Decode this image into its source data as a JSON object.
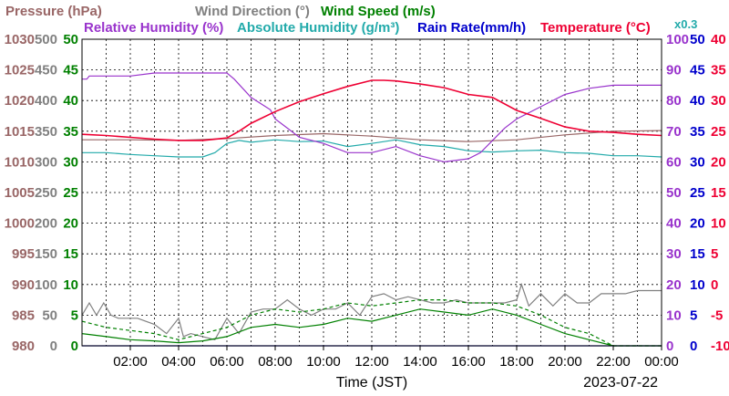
{
  "chart_data": {
    "type": "line",
    "date_label": "2023-07-22",
    "xlabel": "Time (JST)",
    "x_ticks": [
      "02:00",
      "04:00",
      "06:00",
      "08:00",
      "10:00",
      "12:00",
      "14:00",
      "16:00",
      "18:00",
      "20:00",
      "22:00",
      "00:00"
    ],
    "x_range_hours": [
      0,
      24
    ],
    "legend_row1": [
      {
        "name": "Pressure (hPa)",
        "color": "#996666"
      },
      {
        "name": "Wind Direction (°)",
        "color": "#808080"
      },
      {
        "name": "Wind Speed (m/s)",
        "color": "#008000"
      }
    ],
    "legend_row2": [
      {
        "name": "Relative Humidity (%)",
        "color": "#9933cc"
      },
      {
        "name": "Absolute Humidity (g/m³)",
        "color": "#22aaaa"
      },
      {
        "name": "Rain Rate(mm/h)",
        "color": "#0000cc"
      },
      {
        "name": "Temperature (°C)",
        "color": "#ee0033"
      }
    ],
    "rain_multiplier_label": "x0.3",
    "axes": {
      "pressure": {
        "color": "#996666",
        "range": [
          980,
          1030
        ],
        "ticks": [
          "980",
          "985",
          "990",
          "995",
          "1000",
          "1005",
          "1010",
          "1015",
          "1020",
          "1025",
          "1030"
        ]
      },
      "wind_direction": {
        "color": "#808080",
        "range": [
          0,
          500
        ],
        "ticks": [
          "0",
          "50",
          "100",
          "150",
          "200",
          "250",
          "300",
          "350",
          "400",
          "450",
          "500"
        ]
      },
      "wind_speed": {
        "color": "#008000",
        "range": [
          0,
          50
        ],
        "ticks": [
          "0",
          "5",
          "10",
          "15",
          "20",
          "25",
          "30",
          "35",
          "40",
          "45",
          "50"
        ]
      },
      "humidity": {
        "color": "#9933cc",
        "range": [
          0,
          100
        ],
        "ticks": [
          "0",
          "10",
          "20",
          "30",
          "40",
          "50",
          "60",
          "70",
          "80",
          "90",
          "100"
        ]
      },
      "rain": {
        "color": "#0000cc",
        "range": [
          0,
          50
        ],
        "ticks": [
          "0",
          "5",
          "10",
          "15",
          "20",
          "25",
          "30",
          "35",
          "40",
          "45",
          "50"
        ]
      },
      "temperature": {
        "color": "#ee0033",
        "range": [
          -10,
          40
        ],
        "ticks": [
          "-10",
          "-5",
          "0",
          "5",
          "10",
          "15",
          "20",
          "25",
          "30",
          "35",
          "40"
        ]
      }
    },
    "series": [
      {
        "name": "Temperature",
        "axis": "temperature",
        "color": "#ee0033",
        "x": [
          0,
          1,
          2,
          3,
          4,
          5,
          6,
          6.5,
          7,
          8,
          9,
          10,
          11,
          12,
          12.5,
          13,
          14,
          15,
          16,
          17,
          18,
          19,
          20,
          21,
          22,
          23,
          24
        ],
        "y": [
          24.5,
          24.3,
          24,
          23.7,
          23.5,
          23.5,
          23.9,
          25,
          26.3,
          28.2,
          29.8,
          31.1,
          32.3,
          33.3,
          33.3,
          33.2,
          32.7,
          32.1,
          31,
          30.5,
          28.4,
          27.1,
          25.7,
          25,
          24.8,
          24.5,
          24.3
        ]
      },
      {
        "name": "Relative Humidity",
        "axis": "humidity",
        "color": "#9933cc",
        "x": [
          0,
          0.2,
          0.3,
          2,
          3,
          4,
          5,
          6,
          6.3,
          7,
          7.8,
          8,
          8.5,
          9,
          10,
          11,
          12,
          13,
          14,
          15,
          16,
          16.5,
          17,
          17.5,
          18,
          19,
          20,
          21,
          22,
          23,
          23.5,
          24
        ],
        "y": [
          87,
          87,
          88,
          88,
          89,
          89,
          89,
          89,
          87,
          81,
          77,
          74,
          71,
          68,
          66,
          63,
          63,
          65,
          62,
          60,
          61,
          63,
          67,
          71,
          74,
          78,
          82,
          84,
          85,
          85,
          85,
          85
        ]
      },
      {
        "name": "Absolute Humidity",
        "axis": "wind_speed",
        "color": "#22aaaa",
        "x": [
          0,
          1,
          2,
          3,
          4,
          5,
          5.5,
          6,
          6.5,
          7,
          8,
          9,
          10,
          11,
          12,
          13,
          14,
          15,
          16,
          17,
          18,
          19,
          20,
          21,
          22,
          23,
          24
        ],
        "y": [
          31.5,
          31.5,
          31.2,
          31,
          30.8,
          30.8,
          31.5,
          33,
          33.5,
          33.2,
          33.6,
          33.3,
          33.4,
          32.5,
          33,
          33.6,
          32.8,
          32.5,
          31.8,
          31.6,
          31.8,
          31.9,
          31.5,
          31.4,
          31,
          31,
          30.8
        ]
      },
      {
        "name": "Pressure",
        "axis": "pressure",
        "color": "#996666",
        "x": [
          0,
          2,
          4,
          6,
          8,
          10,
          12,
          14,
          16,
          18,
          20,
          22,
          24
        ],
        "y": [
          1013.6,
          1013.6,
          1013.5,
          1013.8,
          1014.3,
          1014.6,
          1014.2,
          1013.6,
          1013.3,
          1013.6,
          1014.4,
          1015.0,
          1015.1
        ]
      },
      {
        "name": "Wind Direction",
        "axis": "wind_direction",
        "color": "#808080",
        "x": [
          0,
          0.3,
          0.6,
          0.9,
          1.2,
          1.5,
          2.3,
          3,
          3.5,
          4,
          4.2,
          4.5,
          5.5,
          6,
          6.5,
          7,
          7.5,
          8,
          8.5,
          9,
          9.5,
          10,
          10.5,
          11,
          11.5,
          12,
          12.5,
          13,
          13.5,
          14,
          14.5,
          15,
          15.5,
          16,
          16.5,
          17,
          17.5,
          18,
          18.2,
          18.5,
          19,
          19.5,
          20,
          20.5,
          21,
          21.5,
          22,
          22.5,
          23,
          24
        ],
        "y": [
          50,
          70,
          50,
          70,
          50,
          45,
          45,
          35,
          20,
          45,
          15,
          20,
          10,
          45,
          20,
          55,
          60,
          60,
          75,
          60,
          50,
          60,
          60,
          70,
          50,
          80,
          85,
          75,
          80,
          75,
          70,
          70,
          75,
          70,
          70,
          70,
          70,
          75,
          100,
          65,
          85,
          65,
          85,
          70,
          70,
          85,
          85,
          85,
          90,
          90
        ]
      },
      {
        "name": "Wind Speed",
        "axis": "wind_speed",
        "color": "#008000",
        "x": [
          0,
          1,
          2,
          3,
          4,
          5,
          6,
          7,
          8,
          9,
          10,
          11,
          12,
          13,
          14,
          15,
          16,
          17,
          18,
          19,
          20,
          21,
          22,
          23,
          24
        ],
        "y": [
          2,
          1.5,
          1,
          0.8,
          0.5,
          0.8,
          1.5,
          3,
          3.5,
          3,
          3.5,
          4.5,
          4,
          5,
          6,
          5.5,
          5,
          6,
          5,
          3.5,
          2,
          1,
          0,
          0,
          0
        ]
      },
      {
        "name": "Wind Gust",
        "axis": "wind_speed",
        "color": "#008000",
        "x": [
          0,
          1,
          2,
          3,
          4,
          5,
          6,
          7,
          8,
          9,
          10,
          11,
          12,
          13,
          14,
          15,
          16,
          17,
          18,
          19,
          20,
          21,
          22,
          23,
          24
        ],
        "y": [
          4,
          3,
          2.5,
          2,
          1,
          2,
          3,
          5,
          6,
          5.5,
          6,
          7,
          6.5,
          7,
          7.5,
          7.5,
          7,
          7,
          6.5,
          5,
          3,
          2,
          0,
          0,
          0
        ]
      },
      {
        "name": "Rain Rate",
        "axis": "rain",
        "color": "#0000cc",
        "x": [
          0,
          24
        ],
        "y": [
          0,
          0
        ]
      }
    ]
  }
}
